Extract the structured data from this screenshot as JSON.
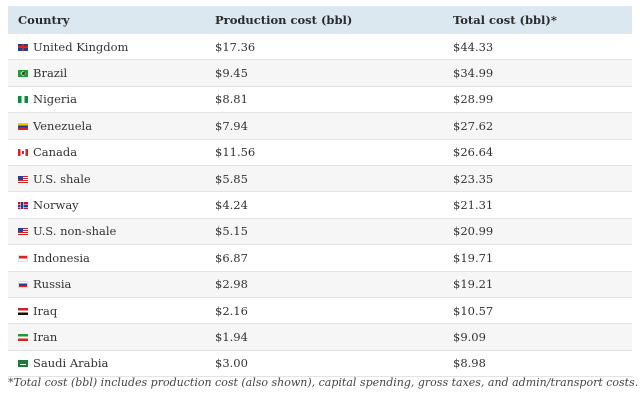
{
  "table": {
    "headers": [
      "Country",
      "Production cost (bbl)",
      "Total cost (bbl)*"
    ],
    "rows": [
      {
        "flag": "uk-flag-icon",
        "country": "United Kingdom",
        "production": "$17.36",
        "total": "$44.33"
      },
      {
        "flag": "brazil-flag-icon",
        "country": "Brazil",
        "production": "$9.45",
        "total": "$34.99"
      },
      {
        "flag": "nigeria-flag-icon",
        "country": "Nigeria",
        "production": "$8.81",
        "total": "$28.99"
      },
      {
        "flag": "venezuela-flag-icon",
        "country": "Venezuela",
        "production": "$7.94",
        "total": "$27.62"
      },
      {
        "flag": "canada-flag-icon",
        "country": "Canada",
        "production": "$11.56",
        "total": "$26.64"
      },
      {
        "flag": "us-flag-icon",
        "country": "U.S. shale",
        "production": "$5.85",
        "total": "$23.35"
      },
      {
        "flag": "norway-flag-icon",
        "country": "Norway",
        "production": "$4.24",
        "total": "$21.31"
      },
      {
        "flag": "us-flag-icon",
        "country": "U.S. non-shale",
        "production": "$5.15",
        "total": "$20.99"
      },
      {
        "flag": "indonesia-flag-icon",
        "country": "Indonesia",
        "production": "$6.87",
        "total": "$19.71"
      },
      {
        "flag": "russia-flag-icon",
        "country": "Russia",
        "production": "$2.98",
        "total": "$19.21"
      },
      {
        "flag": "iraq-flag-icon",
        "country": "Iraq",
        "production": "$2.16",
        "total": "$10.57"
      },
      {
        "flag": "iran-flag-icon",
        "country": "Iran",
        "production": "$1.94",
        "total": "$9.09"
      },
      {
        "flag": "saudi-arabia-flag-icon",
        "country": "Saudi Arabia",
        "production": "$3.00",
        "total": "$8.98"
      }
    ],
    "header_bg": "#dbe8f0"
  },
  "footnote": "*Total cost (bbl) includes production cost (also shown), capital spending, gross taxes, and admin/transport costs."
}
